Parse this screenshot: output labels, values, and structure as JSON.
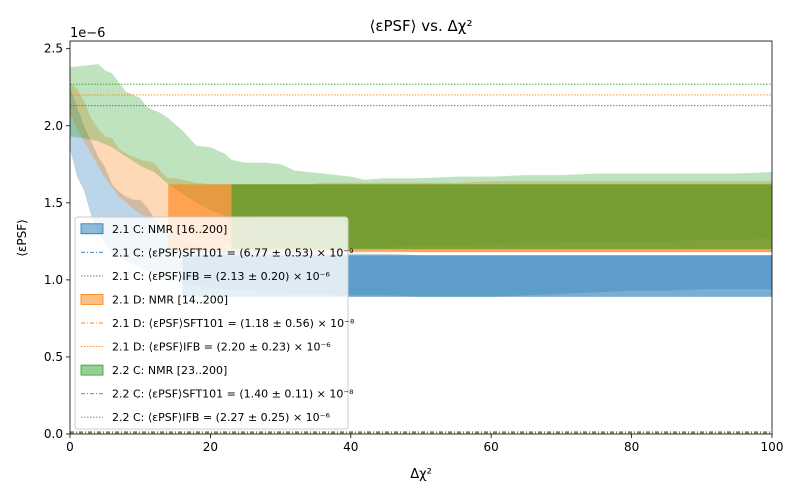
{
  "chart_data": {
    "type": "area",
    "title": "⟨εPSF⟩  vs. Δχ²",
    "xlabel": "Δχ²",
    "ylabel": "⟨εPSF⟩",
    "offset_label": "1e−6",
    "xlim": [
      0,
      100
    ],
    "ylim": [
      0,
      2.55
    ],
    "y_scale_note": "values in units of 1e-6",
    "xticks": [
      {
        "value": 0,
        "label": "0"
      },
      {
        "value": 20,
        "label": "20"
      },
      {
        "value": 40,
        "label": "40"
      },
      {
        "value": 60,
        "label": "60"
      },
      {
        "value": 80,
        "label": "80"
      },
      {
        "value": 100,
        "label": "100"
      }
    ],
    "yticks": [
      {
        "value": 0.0,
        "label": "0.0"
      },
      {
        "value": 0.5,
        "label": "0.5"
      },
      {
        "value": 1.0,
        "label": "1.0"
      },
      {
        "value": 1.5,
        "label": "1.5"
      },
      {
        "value": 2.0,
        "label": "2.0"
      },
      {
        "value": 2.5,
        "label": "2.5"
      }
    ],
    "series": [
      {
        "name": "2.1 C: NMR [16..200]",
        "color": "#1f77b4",
        "kind": "band",
        "x": [
          0,
          1,
          2,
          3,
          4,
          5,
          6,
          7,
          8,
          9,
          10,
          11,
          12,
          13,
          14,
          15,
          16,
          18,
          20,
          22,
          24,
          26,
          28,
          30,
          32,
          34,
          36,
          38,
          40,
          45,
          50,
          55,
          60,
          65,
          70,
          75,
          80,
          85,
          90,
          95,
          100
        ],
        "upper": [
          2.25,
          2.12,
          2.0,
          1.9,
          1.8,
          1.73,
          1.62,
          1.57,
          1.54,
          1.52,
          1.52,
          1.47,
          1.4,
          1.34,
          1.33,
          1.28,
          1.25,
          1.22,
          1.2,
          1.19,
          1.19,
          1.19,
          1.19,
          1.18,
          1.18,
          1.18,
          1.17,
          1.17,
          1.17,
          1.17,
          1.16,
          1.16,
          1.16,
          1.16,
          1.16,
          1.16,
          1.16,
          1.16,
          1.16,
          1.16,
          1.16
        ],
        "lower": [
          1.85,
          1.67,
          1.58,
          1.42,
          1.3,
          1.23,
          1.17,
          1.15,
          1.12,
          1.1,
          1.08,
          1.06,
          1.04,
          1.02,
          1.0,
          0.99,
          0.98,
          0.96,
          0.95,
          0.94,
          0.94,
          0.93,
          0.92,
          0.92,
          0.91,
          0.91,
          0.91,
          0.9,
          0.9,
          0.9,
          0.89,
          0.89,
          0.89,
          0.9,
          0.91,
          0.92,
          0.93,
          0.93,
          0.94,
          0.94,
          0.94
        ]
      },
      {
        "name": "2.1 D: NMR [14..200]",
        "color": "#ff7f0e",
        "kind": "band",
        "x": [
          0,
          1,
          2,
          3,
          4,
          5,
          6,
          7,
          8,
          9,
          10,
          11,
          12,
          13,
          14,
          15,
          16,
          18,
          20,
          22,
          24,
          26,
          28,
          30,
          32,
          34,
          36,
          38,
          40,
          45,
          50,
          55,
          60,
          65,
          70,
          75,
          80,
          85,
          90,
          95,
          100
        ],
        "upper": [
          2.28,
          2.24,
          2.16,
          2.05,
          1.98,
          1.93,
          1.92,
          1.85,
          1.82,
          1.8,
          1.78,
          1.77,
          1.76,
          1.7,
          1.66,
          1.66,
          1.65,
          1.63,
          1.62,
          1.62,
          1.62,
          1.62,
          1.62,
          1.62,
          1.62,
          1.62,
          1.63,
          1.63,
          1.63,
          1.63,
          1.63,
          1.63,
          1.64,
          1.64,
          1.64,
          1.64,
          1.64,
          1.64,
          1.64,
          1.64,
          1.64
        ],
        "lower": [
          2.08,
          1.98,
          1.9,
          1.82,
          1.74,
          1.66,
          1.6,
          1.54,
          1.5,
          1.46,
          1.43,
          1.4,
          1.38,
          1.36,
          1.34,
          1.32,
          1.3,
          1.28,
          1.26,
          1.25,
          1.24,
          1.23,
          1.22,
          1.21,
          1.2,
          1.2,
          1.19,
          1.19,
          1.19,
          1.19,
          1.18,
          1.18,
          1.18,
          1.18,
          1.18,
          1.18,
          1.18,
          1.18,
          1.18,
          1.18,
          1.18
        ]
      },
      {
        "name": "2.2 C: NMR [23..200]",
        "color": "#2ca02c",
        "kind": "band",
        "x": [
          0,
          2,
          4,
          5,
          6,
          7,
          8,
          9,
          10,
          11,
          12,
          13,
          14,
          15,
          16,
          18,
          20,
          22,
          23,
          25,
          28,
          30,
          32,
          34,
          36,
          38,
          40,
          42,
          45,
          50,
          55,
          60,
          65,
          70,
          75,
          80,
          85,
          90,
          95,
          100
        ],
        "upper": [
          2.38,
          2.39,
          2.4,
          2.36,
          2.34,
          2.28,
          2.22,
          2.2,
          2.18,
          2.12,
          2.1,
          2.08,
          2.05,
          2.01,
          1.97,
          1.87,
          1.86,
          1.82,
          1.78,
          1.76,
          1.76,
          1.75,
          1.71,
          1.7,
          1.69,
          1.68,
          1.67,
          1.65,
          1.66,
          1.66,
          1.67,
          1.67,
          1.68,
          1.68,
          1.69,
          1.69,
          1.69,
          1.69,
          1.69,
          1.7
        ],
        "lower": [
          1.93,
          1.92,
          1.9,
          1.88,
          1.86,
          1.83,
          1.8,
          1.77,
          1.74,
          1.72,
          1.7,
          1.66,
          1.62,
          1.59,
          1.56,
          1.5,
          1.45,
          1.42,
          1.4,
          1.38,
          1.34,
          1.3,
          1.27,
          1.24,
          1.23,
          1.22,
          1.21,
          1.21,
          1.21,
          1.22,
          1.22,
          1.23,
          1.24,
          1.24,
          1.25,
          1.25,
          1.25,
          1.26,
          1.26,
          1.27
        ]
      }
    ],
    "rectangles": [
      {
        "series": "2.1 C: NMR [16..200]",
        "color": "#1f77b4",
        "x_start": 16,
        "x_end": 100,
        "y_low": 0.89,
        "y_high": 1.16
      },
      {
        "series": "2.1 D: NMR [14..200]",
        "color": "#ff7f0e",
        "x_start": 14,
        "x_end": 100,
        "y_low": 1.18,
        "y_high": 1.62
      },
      {
        "series": "2.2 C: NMR [23..200]",
        "color": "#2ca02c",
        "x_start": 23,
        "x_end": 100,
        "y_low": 1.2,
        "y_high": 1.62
      }
    ],
    "hlines": [
      {
        "label": "2.1 C: ⟨εPSF⟩SFT101 = (6.77 ± 0.53) × 10⁻⁹",
        "color": "#1f77b4",
        "y": 0.00677,
        "dash": "dashdot"
      },
      {
        "label": "2.1 C: ⟨εPSF⟩IFB = (2.13 ± 0.20) × 10⁻⁶",
        "color": "#1f77b4",
        "y": 2.13,
        "dash": "dotted"
      },
      {
        "label": "2.1 D: ⟨εPSF⟩SFT101 = (1.18 ± 0.56) × 10⁻⁸",
        "color": "#ff7f0e",
        "y": 0.0118,
        "dash": "dashdot"
      },
      {
        "label": "2.1 D: ⟨εPSF⟩IFB = (2.20 ± 0.23) × 10⁻⁶",
        "color": "#ff7f0e",
        "y": 2.2,
        "dash": "dotted"
      },
      {
        "label": "2.2 C: ⟨εPSF⟩SFT101 = (1.40 ± 0.11) × 10⁻⁸",
        "color": "#2ca02c",
        "y": 0.014,
        "dash": "dashdot"
      },
      {
        "label": "2.2 C: ⟨εPSF⟩IFB = (2.27 ± 0.25) × 10⁻⁶",
        "color": "#2ca02c",
        "y": 2.27,
        "dash": "dotted"
      }
    ],
    "legend": {
      "location": "lower-left",
      "entries": [
        {
          "text": "2.1 C: NMR [16..200]",
          "color": "#1f77b4",
          "kind": "patch"
        },
        {
          "text": "2.1 C: ⟨εPSF⟩SFT101 = (6.77 ± 0.53) × 10⁻⁹",
          "color": "#1f77b4",
          "kind": "dashdot"
        },
        {
          "text": "2.1 C: ⟨εPSF⟩IFB = (2.13 ± 0.20) × 10⁻⁶",
          "color": "#1f77b4",
          "kind": "dotted"
        },
        {
          "text": "2.1 D: NMR [14..200]",
          "color": "#ff7f0e",
          "kind": "patch"
        },
        {
          "text": "2.1 D: ⟨εPSF⟩SFT101 = (1.18 ± 0.56) × 10⁻⁸",
          "color": "#ff7f0e",
          "kind": "dashdot"
        },
        {
          "text": "2.1 D: ⟨εPSF⟩IFB = (2.20 ± 0.23) × 10⁻⁶",
          "color": "#ff7f0e",
          "kind": "dotted"
        },
        {
          "text": "2.2 C: NMR [23..200]",
          "color": "#2ca02c",
          "kind": "patch"
        },
        {
          "text": "2.2 C: ⟨εPSF⟩SFT101 = (1.40 ± 0.11) × 10⁻⁸",
          "color": "#2ca02c",
          "kind": "dashdot"
        },
        {
          "text": "2.2 C: ⟨εPSF⟩IFB = (2.27 ± 0.25) × 10⁻⁶",
          "color": "#2ca02c",
          "kind": "dotted"
        }
      ]
    }
  }
}
